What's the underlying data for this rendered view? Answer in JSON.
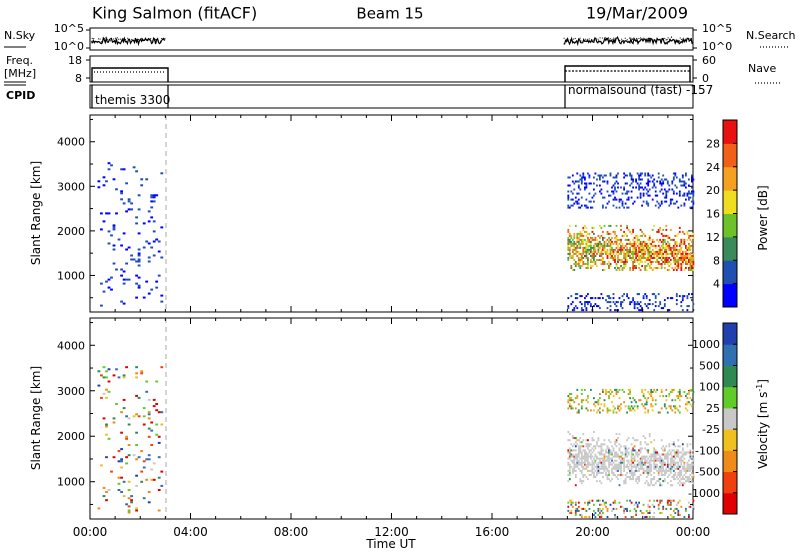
{
  "header": {
    "radar": "King Salmon (fitACF)",
    "beam": "Beam 15",
    "date": "19/Mar/2009"
  },
  "sky_panel": {
    "left_label": "N.Sky",
    "right_label": "N.Search",
    "left_ticks": [
      "10^5",
      "10^0"
    ],
    "right_ticks": [
      "10^5",
      "10^0"
    ]
  },
  "freq_panel": {
    "left_label_1": "Freq.",
    "left_label_2": "[MHz]",
    "right_label": "Nave",
    "left_ticks": [
      "18",
      "8"
    ],
    "right_ticks": [
      "60",
      "0"
    ]
  },
  "cpid_panel": {
    "label": "CPID",
    "programs": [
      "themis 3300",
      "normalsound (fast) -157"
    ]
  },
  "chart_data": [
    {
      "type": "heatmap",
      "title": "",
      "quantity": "Power",
      "xlabel": "Time UT",
      "ylabel": "Slant Range [km]",
      "x_ticks": [
        "00:00",
        "04:00",
        "08:00",
        "12:00",
        "16:00",
        "20:00",
        "00:00"
      ],
      "xlim_hours": [
        0,
        24
      ],
      "ylim": [
        180,
        4600
      ],
      "y_ticks": [
        1000,
        2000,
        3000,
        4000
      ],
      "colorbar": {
        "label": "Power [dB]",
        "tick_labels": [
          "4",
          "8",
          "12",
          "16",
          "20",
          "24",
          "28"
        ],
        "colors": [
          "#0000ff",
          "#1f4fb0",
          "#3a8a5a",
          "#6dc22a",
          "#f0dd20",
          "#f5a020",
          "#f06018",
          "#e81010"
        ]
      },
      "data_gap_hours": [
        3.0,
        18.75
      ],
      "dashed_marker_hour": 3.0,
      "echo_regions": [
        {
          "time_hours": [
            0.3,
            2.9
          ],
          "range_km": [
            300,
            3500
          ],
          "level": "weak, sparse"
        },
        {
          "time_hours": [
            19.0,
            24.0
          ],
          "range_km": [
            2500,
            3300
          ],
          "level": "weak"
        },
        {
          "time_hours": [
            19.0,
            24.0
          ],
          "range_km": [
            1100,
            2100
          ],
          "level": "moderate to strong (up to ~28 dB)"
        },
        {
          "time_hours": [
            19.0,
            24.0
          ],
          "range_km": [
            200,
            600
          ],
          "level": "weak"
        }
      ]
    },
    {
      "type": "heatmap",
      "title": "",
      "quantity": "Velocity",
      "xlabel": "Time UT",
      "ylabel": "Slant Range [km]",
      "x_ticks": [
        "00:00",
        "04:00",
        "08:00",
        "12:00",
        "16:00",
        "20:00",
        "00:00"
      ],
      "xlim_hours": [
        0,
        24
      ],
      "ylim": [
        180,
        4600
      ],
      "y_ticks": [
        1000,
        2000,
        3000,
        4000
      ],
      "colorbar": {
        "label": "Velocity [m s",
        "label_exponent": "-1",
        "label_close": "]",
        "tick_labels": [
          "1000",
          "500",
          "100",
          "25",
          "-25",
          "-100",
          "-500",
          "-1000"
        ],
        "colors": [
          "#2040b0",
          "#3070b0",
          "#2e8a50",
          "#5fcc2a",
          "#c8c8c8",
          "#f0c020",
          "#f08a18",
          "#f04010",
          "#e00000"
        ]
      },
      "data_gap_hours": [
        3.0,
        18.75
      ],
      "dashed_marker_hour": 3.0,
      "echo_regions": [
        {
          "time_hours": [
            0.3,
            2.9
          ],
          "range_km": [
            300,
            3500
          ],
          "velocity": "mixed"
        },
        {
          "time_hours": [
            19.0,
            24.0
          ],
          "range_km": [
            2500,
            3000
          ],
          "velocity": "-100 to 100"
        },
        {
          "time_hours": [
            19.0,
            24.0
          ],
          "range_km": [
            900,
            2100
          ],
          "velocity": "-25 to 25 (ground scatter)"
        },
        {
          "time_hours": [
            19.0,
            24.0
          ],
          "range_km": [
            200,
            600
          ],
          "velocity": "mixed"
        }
      ]
    }
  ]
}
